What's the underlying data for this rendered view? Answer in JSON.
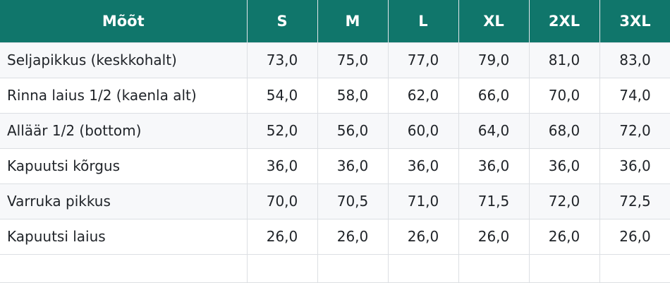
{
  "table": {
    "headers": [
      "Mõõt",
      "S",
      "M",
      "L",
      "XL",
      "2XL",
      "3XL"
    ],
    "rows": [
      {
        "label": "Seljapikkus (keskkohalt)",
        "values": [
          "73,0",
          "75,0",
          "77,0",
          "79,0",
          "81,0",
          "83,0"
        ]
      },
      {
        "label": "Rinna laius 1/2 (kaenla alt)",
        "values": [
          "54,0",
          "58,0",
          "62,0",
          "66,0",
          "70,0",
          "74,0"
        ]
      },
      {
        "label": "Alläär 1/2 (bottom)",
        "values": [
          "52,0",
          "56,0",
          "60,0",
          "64,0",
          "68,0",
          "72,0"
        ]
      },
      {
        "label": "Kapuutsi kõrgus",
        "values": [
          "36,0",
          "36,0",
          "36,0",
          "36,0",
          "36,0",
          "36,0"
        ]
      },
      {
        "label": "Varruka pikkus",
        "values": [
          "70,0",
          "70,5",
          "71,0",
          "71,5",
          "72,0",
          "72,5"
        ]
      },
      {
        "label": "Kapuutsi laius",
        "values": [
          "26,0",
          "26,0",
          "26,0",
          "26,0",
          "26,0",
          "26,0"
        ]
      }
    ]
  },
  "colors": {
    "header_bg": "#10766b",
    "header_text": "#ffffff",
    "row_alt_bg": "#f7f8fa"
  }
}
